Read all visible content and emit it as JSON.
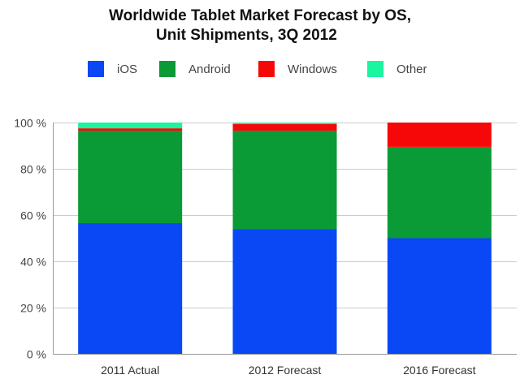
{
  "chart_data": {
    "type": "bar",
    "stacked": true,
    "title_line1": "Worldwide Tablet Market Forecast by OS,",
    "title_line2": "Unit Shipments, 3Q 2012",
    "categories": [
      "2011 Actual",
      "2012 Forecast",
      "2016 Forecast"
    ],
    "series": [
      {
        "name": "iOS",
        "color": "#0a47f5",
        "values": [
          56.5,
          54.0,
          50.0
        ]
      },
      {
        "name": "Android",
        "color": "#0a9a36",
        "values": [
          40.0,
          42.5,
          39.5
        ]
      },
      {
        "name": "Windows",
        "color": "#f70808",
        "values": [
          1.0,
          2.8,
          10.5
        ]
      },
      {
        "name": "Other",
        "color": "#1af5a0",
        "values": [
          2.5,
          0.7,
          0.0
        ]
      }
    ],
    "ylim": [
      0,
      100
    ],
    "yticks": [
      0,
      20,
      40,
      60,
      80,
      100
    ],
    "ytick_labels": [
      "0 %",
      "20 %",
      "40 %",
      "60 %",
      "80 %",
      "100 %"
    ],
    "xlabel": "",
    "ylabel": "",
    "grid": true,
    "legend_position": "top"
  }
}
